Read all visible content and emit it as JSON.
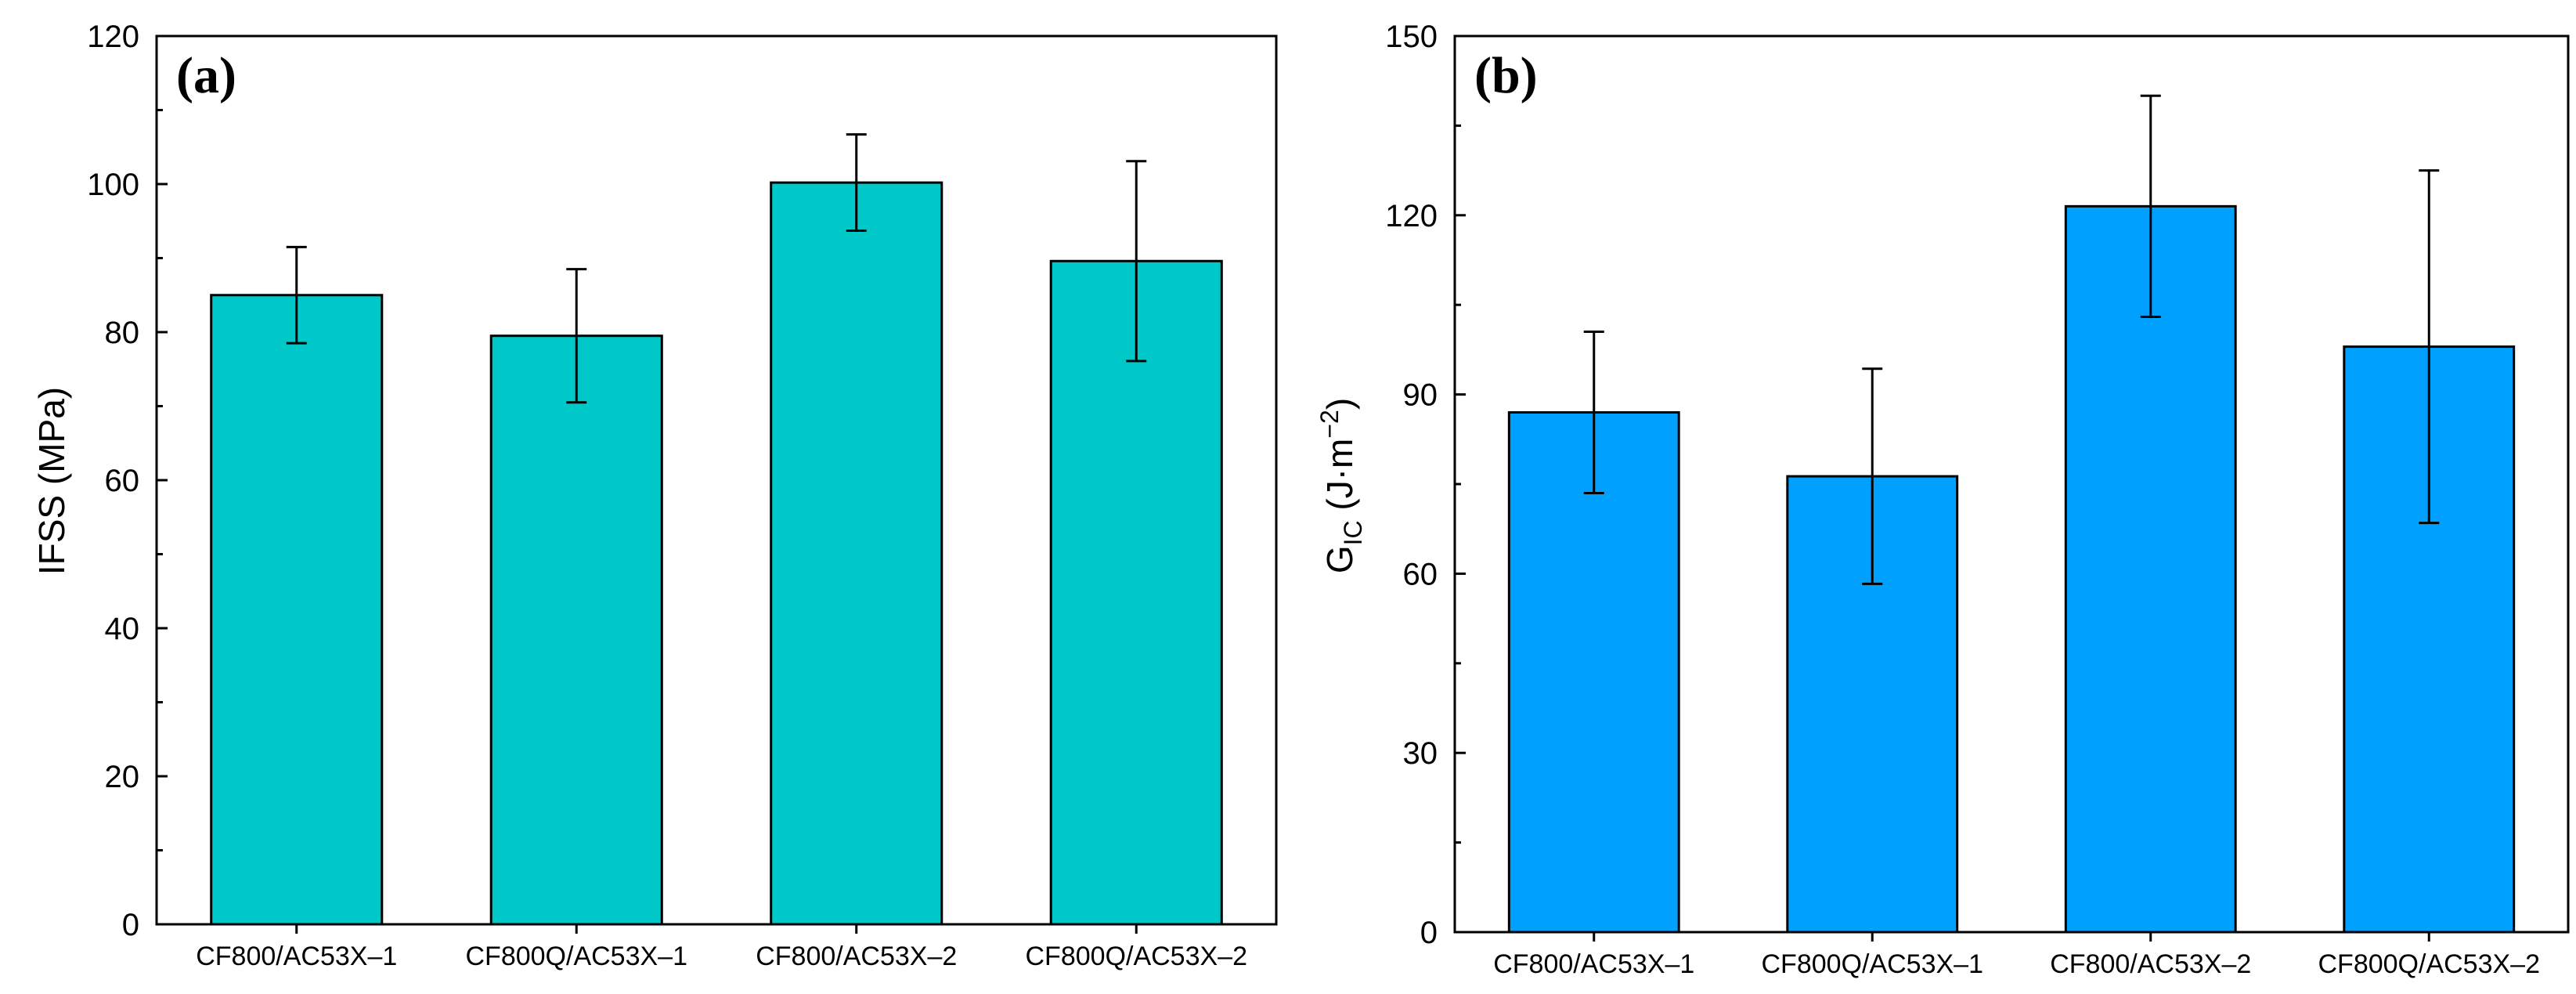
{
  "chart_data": [
    {
      "type": "bar",
      "panel_label": "(a)",
      "categories": [
        "CF800/AC53X–1",
        "CF800Q/AC53X–1",
        "CF800/AC53X–2",
        "CF800Q/AC53X–2"
      ],
      "values": [
        85,
        79.5,
        100.2,
        89.6
      ],
      "error": [
        6.5,
        9,
        6.5,
        13.5
      ],
      "ylabel": "IFSS (MPa)",
      "ylim": [
        0,
        120
      ],
      "yticks": [
        "0",
        "20",
        "40",
        "60",
        "80",
        "100",
        "120"
      ],
      "bar_color": "#00c8c8",
      "grid": false
    },
    {
      "type": "bar",
      "panel_label": "(b)",
      "categories": [
        "CF800/AC53X–1",
        "CF800Q/AC53X–1",
        "CF800/AC53X–2",
        "CF800Q/AC53X–2"
      ],
      "values": [
        87,
        76.3,
        121.5,
        98
      ],
      "error": [
        13.5,
        18,
        18.5,
        29.5
      ],
      "ylabel": {
        "main": "G",
        "sub": "IC",
        "units_prefix": " (J·m",
        "units_sup": "−2",
        "units_suffix": ")"
      },
      "ylim": [
        0,
        150
      ],
      "yticks": [
        "0",
        "30",
        "60",
        "90",
        "120",
        "150"
      ],
      "bar_color": "#00a0ff",
      "grid": false
    }
  ]
}
